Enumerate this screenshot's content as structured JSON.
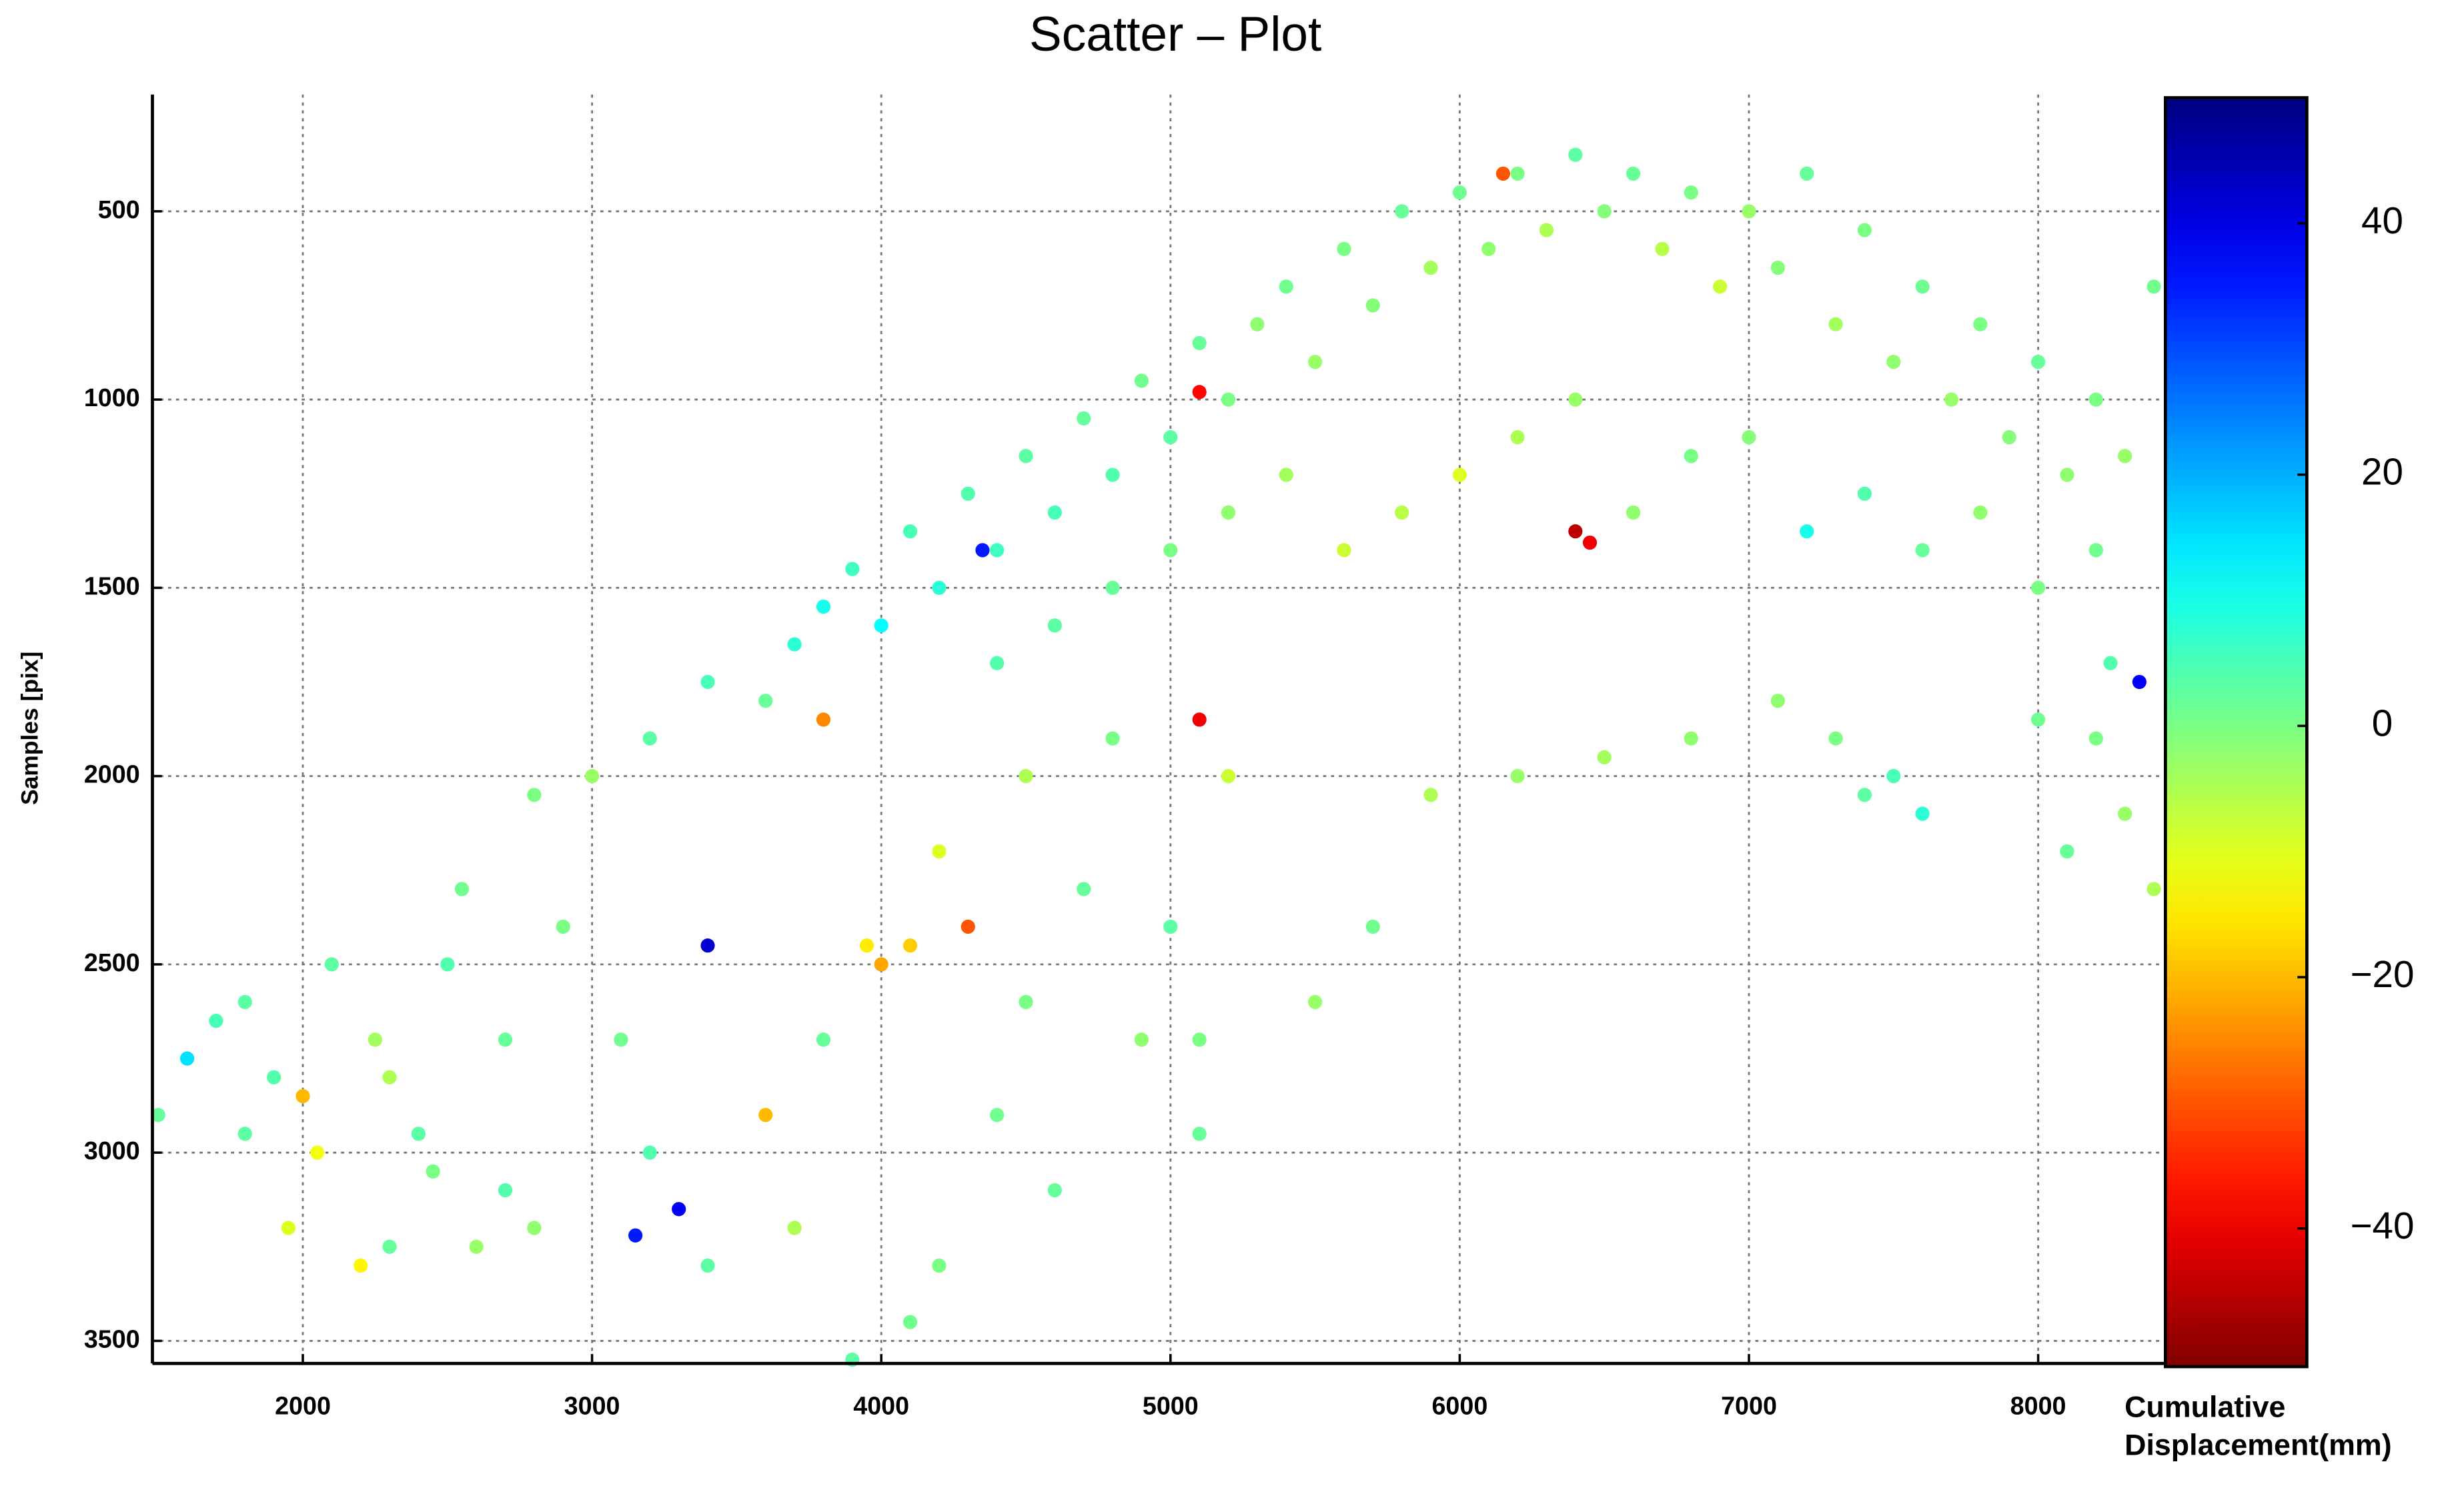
{
  "chart_data": {
    "type": "scatter",
    "title": "Scatter – Plot",
    "y_label": "Samples [pix]",
    "colorbar_label": "Cumulative Displacement(mm)",
    "colormap": "jet_r",
    "grid": true,
    "y_inverted": true,
    "xlim": [
      1480,
      8440
    ],
    "ylim": [
      190,
      3560
    ],
    "xticks": [
      2000,
      3000,
      4000,
      5000,
      6000,
      7000,
      8000
    ],
    "yticks": [
      500,
      1000,
      1500,
      2000,
      2500,
      3000,
      3500
    ],
    "clim": [
      -51,
      50
    ],
    "cticks": [
      {
        "value": -40,
        "label": "−40"
      },
      {
        "value": -20,
        "label": "−20"
      },
      0,
      20,
      40
    ],
    "x": [
      3700,
      3800,
      3900,
      4000,
      4100,
      4200,
      4300,
      4400,
      4500,
      4600,
      4700,
      4800,
      4900,
      5000,
      5100,
      5200,
      5300,
      5400,
      5500,
      5600,
      5700,
      5800,
      5900,
      6000,
      6100,
      6200,
      6300,
      6400,
      6500,
      6600,
      6700,
      6800,
      6900,
      7000,
      7100,
      7200,
      7300,
      7400,
      7500,
      7600,
      7700,
      7800,
      7900,
      8000,
      8100,
      8200,
      8300,
      8400,
      4400,
      4600,
      4800,
      5000,
      5200,
      5400,
      5600,
      5800,
      6000,
      6200,
      6400,
      6600,
      6800,
      7000,
      7200,
      7400,
      7600,
      7800,
      8000,
      8200,
      6400,
      6450,
      6150,
      5100,
      4350,
      7100,
      7300,
      7500,
      7600,
      7400,
      8000,
      8200,
      8300,
      8400,
      8100,
      8250,
      8350,
      6800,
      6500,
      6200,
      5900,
      3800,
      3600,
      3400,
      3200,
      4300,
      4100,
      4000,
      3950,
      4200,
      4500,
      4800,
      5100,
      5200,
      4700,
      4500,
      4400,
      4600,
      4200,
      4100,
      3900,
      3700,
      3800,
      3600,
      3400,
      3300,
      3150,
      3400,
      2900,
      3000,
      2800,
      3100,
      3200,
      5000,
      5100,
      5100,
      5500,
      5700,
      4900,
      1500,
      1600,
      1700,
      1800,
      1900,
      1950,
      2000,
      2100,
      2200,
      2300,
      2300,
      2400,
      2450,
      2500,
      2550,
      2600,
      2700,
      2700,
      2800,
      2050,
      1800,
      2250
    ],
    "y": [
      1650,
      1550,
      1450,
      1600,
      1350,
      1500,
      1250,
      1400,
      1150,
      1300,
      1050,
      1200,
      950,
      1100,
      850,
      1000,
      800,
      700,
      900,
      600,
      750,
      500,
      650,
      450,
      600,
      400,
      550,
      350,
      500,
      400,
      600,
      450,
      700,
      500,
      650,
      400,
      800,
      550,
      900,
      700,
      1000,
      800,
      1100,
      900,
      1200,
      1000,
      1150,
      700,
      1700,
      1600,
      1500,
      1400,
      1300,
      1200,
      1400,
      1300,
      1200,
      1100,
      1000,
      1300,
      1150,
      1100,
      1350,
      1250,
      1400,
      1300,
      1500,
      1400,
      1350,
      1380,
      400,
      980,
      1400,
      1800,
      1900,
      2000,
      2100,
      2050,
      1850,
      1900,
      2100,
      2300,
      2200,
      1700,
      1750,
      1900,
      1950,
      2000,
      2050,
      1850,
      1800,
      1750,
      1900,
      2400,
      2450,
      2500,
      2450,
      2200,
      2000,
      1900,
      1850,
      2000,
      2300,
      2600,
      2900,
      3100,
      3300,
      3450,
      3550,
      3200,
      2700,
      2900,
      3300,
      3150,
      3220,
      2450,
      2400,
      2000,
      2050,
      2700,
      3000,
      2400,
      2700,
      2950,
      2600,
      2400,
      2700,
      2900,
      2750,
      2650,
      2600,
      2800,
      3200,
      2850,
      2500,
      3300,
      3250,
      2800,
      2950,
      3050,
      2500,
      2300,
      3250,
      2700,
      3100,
      3200,
      3000,
      2950,
      2700
    ],
    "c": [
      8,
      10,
      6,
      12,
      5,
      8,
      4,
      6,
      3,
      5,
      2,
      4,
      1,
      3,
      2,
      0,
      -2,
      1,
      -3,
      0,
      -1,
      2,
      -4,
      1,
      -2,
      0,
      -5,
      3,
      -1,
      2,
      -6,
      0,
      -8,
      -3,
      -1,
      2,
      -4,
      0,
      -2,
      1,
      -3,
      0,
      -1,
      2,
      -2,
      0,
      -3,
      1,
      4,
      3,
      2,
      0,
      -2,
      -4,
      -8,
      -6,
      -10,
      -5,
      -3,
      -2,
      0,
      -1,
      10,
      4,
      2,
      -2,
      0,
      1,
      -45,
      -40,
      -30,
      -38,
      35,
      -2,
      0,
      5,
      8,
      3,
      1,
      0,
      -3,
      -5,
      2,
      4,
      38,
      -2,
      -4,
      -3,
      -5,
      -25,
      2,
      5,
      3,
      -30,
      -18,
      -22,
      -15,
      -10,
      -5,
      0,
      -40,
      -8,
      2,
      0,
      1,
      2,
      0,
      1,
      3,
      -5,
      2,
      -20,
      3,
      38,
      35,
      42,
      0,
      -3,
      0,
      1,
      4,
      3,
      0,
      2,
      -3,
      1,
      -2,
      2,
      15,
      5,
      3,
      4,
      -10,
      -20,
      3,
      -14,
      2,
      -5,
      3,
      0,
      4,
      1,
      -3,
      2,
      4,
      -2,
      -12,
      3,
      -4
    ]
  }
}
